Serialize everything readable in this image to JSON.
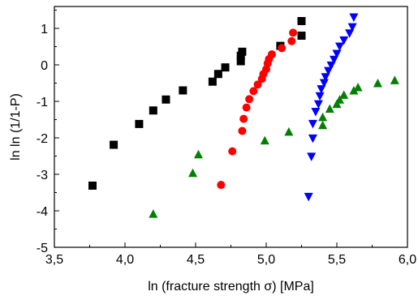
{
  "chart_data": {
    "type": "scatter",
    "xlabel": "ln (fracture strength σ) [MPa]",
    "ylabel": "ln ln (1/1-P)",
    "xlim": [
      3.5,
      6.0
    ],
    "ylim": [
      -5,
      1.6
    ],
    "xticks": [
      3.5,
      4.0,
      4.5,
      5.0,
      5.5,
      6.0
    ],
    "xtick_labels": [
      "3,5",
      "4,0",
      "4,5",
      "5,0",
      "5,5",
      "6,0"
    ],
    "yticks": [
      -5,
      -4,
      -3,
      -2,
      -1,
      0,
      1
    ],
    "ytick_labels": [
      "-5",
      "-4",
      "-3",
      "-2",
      "-1",
      "0",
      "1"
    ],
    "grid": false,
    "series": [
      {
        "marker": "square",
        "color": "#000000",
        "points": [
          [
            3.77,
            -3.31
          ],
          [
            3.92,
            -2.19
          ],
          [
            4.1,
            -1.62
          ],
          [
            4.2,
            -1.25
          ],
          [
            4.29,
            -0.95
          ],
          [
            4.41,
            -0.7
          ],
          [
            4.62,
            -0.46
          ],
          [
            4.66,
            -0.25
          ],
          [
            4.71,
            -0.07
          ],
          [
            4.82,
            0.1
          ],
          [
            4.82,
            0.25
          ],
          [
            4.83,
            0.36
          ],
          [
            5.1,
            0.52
          ],
          [
            5.25,
            0.8
          ],
          [
            5.25,
            1.2
          ]
        ]
      },
      {
        "marker": "circle",
        "color": "#ff0000",
        "points": [
          [
            4.68,
            -3.29
          ],
          [
            4.76,
            -2.37
          ],
          [
            4.83,
            -1.81
          ],
          [
            4.84,
            -1.48
          ],
          [
            4.86,
            -1.17
          ],
          [
            4.88,
            -0.94
          ],
          [
            4.91,
            -0.72
          ],
          [
            4.94,
            -0.54
          ],
          [
            4.97,
            -0.38
          ],
          [
            4.98,
            -0.25
          ],
          [
            5.0,
            -0.12
          ],
          [
            5.01,
            0.04
          ],
          [
            5.02,
            0.16
          ],
          [
            5.04,
            0.29
          ],
          [
            5.11,
            0.46
          ],
          [
            5.18,
            0.65
          ],
          [
            5.19,
            0.88
          ]
        ]
      },
      {
        "marker": "triangle-down",
        "color": "#0000ff",
        "points": [
          [
            5.3,
            -3.62
          ],
          [
            5.32,
            -2.52
          ],
          [
            5.33,
            -2.02
          ],
          [
            5.33,
            -1.62
          ],
          [
            5.35,
            -1.29
          ],
          [
            5.37,
            -1.08
          ],
          [
            5.38,
            -0.86
          ],
          [
            5.39,
            -0.67
          ],
          [
            5.41,
            -0.5
          ],
          [
            5.42,
            -0.34
          ],
          [
            5.44,
            -0.17
          ],
          [
            5.46,
            -0.02
          ],
          [
            5.48,
            0.14
          ],
          [
            5.5,
            0.3
          ],
          [
            5.52,
            0.5
          ],
          [
            5.55,
            0.67
          ],
          [
            5.59,
            0.86
          ],
          [
            5.61,
            1.03
          ],
          [
            5.62,
            1.3
          ]
        ]
      },
      {
        "marker": "triangle-up",
        "color": "#008000",
        "points": [
          [
            4.2,
            -4.08
          ],
          [
            4.48,
            -2.96
          ],
          [
            4.52,
            -2.45
          ],
          [
            4.99,
            -2.07
          ],
          [
            5.16,
            -1.83
          ],
          [
            5.4,
            -1.65
          ],
          [
            5.4,
            -1.43
          ],
          [
            5.45,
            -1.2
          ],
          [
            5.5,
            -1.07
          ],
          [
            5.52,
            -0.95
          ],
          [
            5.55,
            -0.82
          ],
          [
            5.62,
            -0.7
          ],
          [
            5.65,
            -0.61
          ],
          [
            5.79,
            -0.5
          ],
          [
            5.91,
            -0.42
          ]
        ]
      }
    ]
  }
}
